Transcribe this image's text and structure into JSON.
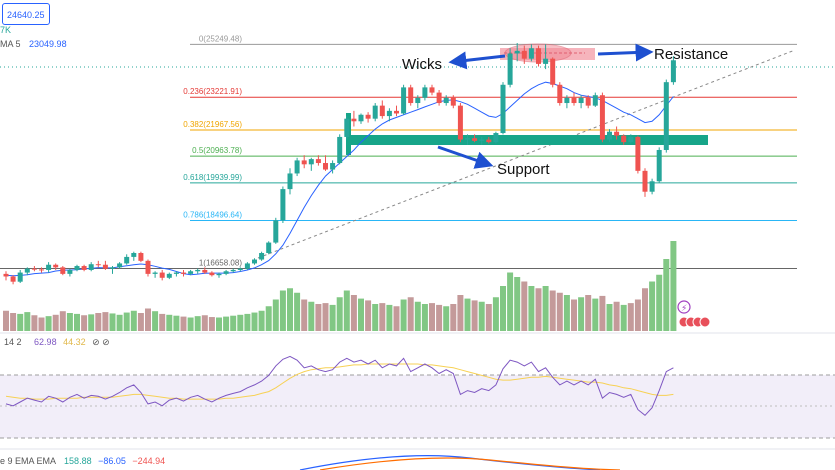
{
  "header": {
    "price_badge": "24640.25",
    "price_badge_color": "#2962ff",
    "k_fragment": "7K",
    "ma_label": "MA 5",
    "ma_value": "23049.98"
  },
  "fib_levels": [
    {
      "label": "0(25249.48)",
      "price": 25249.48,
      "color": "#999999"
    },
    {
      "label": "0.236(23221.91)",
      "price": 23221.91,
      "color": "#e53935"
    },
    {
      "label": "0.382(21967.56)",
      "price": 21967.56,
      "color": "#f0a500"
    },
    {
      "label": "0.5(20963.78)",
      "price": 20963.78,
      "color": "#4caf50"
    },
    {
      "label": "0.618(19939.99)",
      "price": 19939.99,
      "color": "#26a69a"
    },
    {
      "label": "0.786(18496.64)",
      "price": 18496.64,
      "color": "#29b6f6"
    },
    {
      "label": "1(16658.08)",
      "price": 16658.08,
      "color": "#666666"
    }
  ],
  "annotations": {
    "wicks": "Wicks",
    "resistance": "Resistance",
    "support": "Support"
  },
  "rsi_header": {
    "label": "14 2",
    "value1": "62.98",
    "value2": "44.32",
    "icons": "⊘ ⊘"
  },
  "macd_header": {
    "label": "e 9 EMA EMA",
    "v1": "158.88",
    "v2": "−86.05",
    "v3": "−244.94"
  },
  "colors": {
    "up": "#26a69a",
    "down": "#ef5350",
    "ma": "#2962ff",
    "rsi": "#7e57c2",
    "rsi_ma": "#f7d154",
    "support_zone": "#17a589",
    "vol_up": "#81c784",
    "vol_down": "#c49a9a"
  },
  "chart_data": {
    "type": "candlestick",
    "price_range": [
      16100,
      25800
    ],
    "candles": [
      [
        16450,
        16550,
        16200,
        16350
      ],
      [
        16350,
        16400,
        16050,
        16150
      ],
      [
        16150,
        16600,
        16100,
        16500
      ],
      [
        16500,
        16700,
        16400,
        16650
      ],
      [
        16650,
        16750,
        16550,
        16620
      ],
      [
        16620,
        16700,
        16500,
        16600
      ],
      [
        16600,
        16900,
        16500,
        16800
      ],
      [
        16800,
        16850,
        16600,
        16700
      ],
      [
        16700,
        16750,
        16400,
        16450
      ],
      [
        16450,
        16650,
        16350,
        16600
      ],
      [
        16600,
        16800,
        16550,
        16750
      ],
      [
        16750,
        16800,
        16550,
        16600
      ],
      [
        16600,
        16900,
        16550,
        16820
      ],
      [
        16820,
        16950,
        16700,
        16800
      ],
      [
        16800,
        16950,
        16600,
        16650
      ],
      [
        16650,
        16750,
        16450,
        16700
      ],
      [
        16700,
        16900,
        16650,
        16850
      ],
      [
        16850,
        17200,
        16800,
        17100
      ],
      [
        17100,
        17300,
        16950,
        17250
      ],
      [
        17250,
        17300,
        16900,
        16950
      ],
      [
        16950,
        17000,
        16350,
        16450
      ],
      [
        16450,
        16550,
        16300,
        16500
      ],
      [
        16500,
        16600,
        16200,
        16300
      ],
      [
        16300,
        16500,
        16250,
        16450
      ],
      [
        16450,
        16550,
        16350,
        16500
      ],
      [
        16500,
        16600,
        16350,
        16450
      ],
      [
        16450,
        16600,
        16400,
        16550
      ],
      [
        16550,
        16650,
        16450,
        16600
      ],
      [
        16600,
        16700,
        16450,
        16500
      ],
      [
        16500,
        16550,
        16350,
        16400
      ],
      [
        16400,
        16500,
        16300,
        16450
      ],
      [
        16450,
        16600,
        16400,
        16550
      ],
      [
        16550,
        16650,
        16500,
        16600
      ],
      [
        16600,
        16700,
        16550,
        16650
      ],
      [
        16650,
        16900,
        16600,
        16850
      ],
      [
        16850,
        17050,
        16800,
        17000
      ],
      [
        17000,
        17300,
        16950,
        17250
      ],
      [
        17250,
        17700,
        17200,
        17650
      ],
      [
        17650,
        18600,
        17600,
        18500
      ],
      [
        18500,
        19800,
        18400,
        19700
      ],
      [
        19700,
        20500,
        19500,
        20300
      ],
      [
        20300,
        20900,
        20200,
        20800
      ],
      [
        20800,
        21000,
        20500,
        20650
      ],
      [
        20650,
        20900,
        20400,
        20850
      ],
      [
        20850,
        21000,
        20600,
        20700
      ],
      [
        20700,
        21000,
        20400,
        20450
      ],
      [
        20450,
        20800,
        20300,
        20700
      ],
      [
        20700,
        21800,
        20650,
        21700
      ],
      [
        21700,
        22500,
        21600,
        22400
      ],
      [
        22400,
        22700,
        22100,
        22300
      ],
      [
        22300,
        22600,
        22200,
        22550
      ],
      [
        22550,
        22650,
        22250,
        22400
      ],
      [
        22400,
        23000,
        22300,
        22900
      ],
      [
        22900,
        23100,
        22400,
        22500
      ],
      [
        22500,
        22800,
        22300,
        22700
      ],
      [
        22700,
        22900,
        22500,
        22600
      ],
      [
        22600,
        23700,
        22550,
        23600
      ],
      [
        23600,
        23700,
        22900,
        23000
      ],
      [
        23000,
        23300,
        22800,
        23200
      ],
      [
        23200,
        23700,
        23100,
        23600
      ],
      [
        23600,
        23700,
        23300,
        23400
      ],
      [
        23400,
        23500,
        22900,
        23000
      ],
      [
        23000,
        23300,
        22900,
        23200
      ],
      [
        23200,
        23300,
        22800,
        22900
      ],
      [
        22900,
        23000,
        21500,
        21600
      ],
      [
        21600,
        21800,
        21400,
        21650
      ],
      [
        21650,
        21800,
        21500,
        21550
      ],
      [
        21550,
        21700,
        21400,
        21600
      ],
      [
        21600,
        21700,
        21450,
        21500
      ],
      [
        21500,
        21900,
        21450,
        21850
      ],
      [
        21850,
        23800,
        21800,
        23700
      ],
      [
        23700,
        25100,
        23600,
        24900
      ],
      [
        24900,
        25300,
        24600,
        25000
      ],
      [
        25000,
        25200,
        24500,
        24700
      ],
      [
        24700,
        25250,
        24600,
        25100
      ],
      [
        25100,
        25200,
        24400,
        24500
      ],
      [
        24500,
        25250,
        24300,
        24700
      ],
      [
        24700,
        24750,
        23600,
        23700
      ],
      [
        23700,
        23800,
        22900,
        23000
      ],
      [
        23000,
        23300,
        22800,
        23200
      ],
      [
        23200,
        23400,
        22900,
        23000
      ],
      [
        23000,
        23300,
        22800,
        23200
      ],
      [
        23200,
        23300,
        22800,
        22900
      ],
      [
        22900,
        23400,
        22850,
        23300
      ],
      [
        23300,
        23400,
        21500,
        21600
      ],
      [
        21600,
        22000,
        21500,
        21900
      ],
      [
        21900,
        22100,
        21600,
        21750
      ],
      [
        21750,
        21800,
        21400,
        21500
      ],
      [
        21500,
        21800,
        21450,
        21700
      ],
      [
        21700,
        21750,
        20300,
        20400
      ],
      [
        20400,
        20500,
        19400,
        19600
      ],
      [
        19600,
        20100,
        19500,
        20000
      ],
      [
        20000,
        21300,
        19950,
        21200
      ],
      [
        21200,
        23900,
        21100,
        23800
      ],
      [
        23800,
        24800,
        23700,
        24640
      ]
    ],
    "volume": [
      45,
      40,
      38,
      42,
      35,
      30,
      33,
      36,
      44,
      40,
      38,
      35,
      37,
      40,
      42,
      39,
      36,
      41,
      45,
      40,
      50,
      44,
      38,
      36,
      34,
      32,
      30,
      33,
      35,
      31,
      30,
      32,
      34,
      36,
      38,
      41,
      45,
      55,
      70,
      90,
      95,
      85,
      70,
      65,
      60,
      62,
      58,
      75,
      90,
      80,
      72,
      68,
      60,
      62,
      58,
      55,
      70,
      75,
      65,
      60,
      62,
      58,
      55,
      60,
      80,
      72,
      68,
      65,
      60,
      75,
      100,
      130,
      120,
      110,
      100,
      95,
      100,
      90,
      85,
      80,
      70,
      75,
      80,
      72,
      78,
      60,
      65,
      58,
      62,
      70,
      95,
      110,
      125,
      160,
      200
    ],
    "volume_up": [
      false,
      false,
      true,
      true,
      false,
      false,
      true,
      false,
      false,
      true,
      true,
      false,
      true,
      false,
      false,
      true,
      true,
      true,
      true,
      false,
      false,
      true,
      false,
      true,
      true,
      false,
      true,
      true,
      false,
      false,
      true,
      true,
      true,
      true,
      true,
      true,
      true,
      true,
      true,
      true,
      true,
      true,
      false,
      true,
      false,
      false,
      true,
      true,
      true,
      false,
      true,
      false,
      true,
      false,
      true,
      false,
      true,
      false,
      true,
      true,
      false,
      false,
      true,
      false,
      false,
      true,
      false,
      true,
      false,
      true,
      true,
      true,
      true,
      false,
      true,
      false,
      true,
      false,
      false,
      true,
      false,
      true,
      false,
      true,
      false,
      true,
      false,
      true,
      false,
      false,
      false,
      true,
      true,
      true,
      true
    ],
    "ma": [
      16400,
      16380,
      16390,
      16420,
      16460,
      16480,
      16500,
      16560,
      16590,
      16600,
      16610,
      16640,
      16660,
      16690,
      16680,
      16680,
      16720,
      16760,
      16800,
      16830,
      16800,
      16740,
      16670,
      16620,
      16540,
      16460,
      16420,
      16440,
      16470,
      16480,
      16480,
      16480,
      16500,
      16540,
      16600,
      16680,
      16800,
      16960,
      17220,
      17550,
      18000,
      18500,
      19000,
      19450,
      19850,
      20200,
      20450,
      20700,
      20950,
      21200,
      21500,
      21750,
      22000,
      22200,
      22350,
      22450,
      22550,
      22650,
      22750,
      22850,
      22950,
      23050,
      23100,
      23120,
      23050,
      22950,
      22800,
      22650,
      22500,
      22450,
      22600,
      22850,
      23100,
      23350,
      23550,
      23700,
      23800,
      23750,
      23650,
      23550,
      23400,
      23300,
      23250,
      23200,
      23100,
      22950,
      22800,
      22650,
      22550,
      22400,
      22250,
      22300,
      22550,
      22900,
      23250
    ],
    "rsi": [
      38,
      36,
      40,
      44,
      42,
      40,
      46,
      44,
      40,
      45,
      48,
      44,
      47,
      46,
      43,
      46,
      50,
      55,
      58,
      50,
      38,
      40,
      36,
      42,
      44,
      41,
      45,
      47,
      43,
      40,
      44,
      47,
      49,
      51,
      55,
      58,
      62,
      68,
      78,
      85,
      88,
      84,
      76,
      78,
      74,
      72,
      74,
      82,
      86,
      82,
      84,
      80,
      84,
      76,
      80,
      78,
      86,
      72,
      76,
      80,
      76,
      70,
      74,
      70,
      48,
      52,
      50,
      54,
      52,
      58,
      75,
      84,
      82,
      78,
      82,
      72,
      76,
      66,
      58,
      62,
      58,
      62,
      58,
      64,
      44,
      50,
      48,
      45,
      48,
      32,
      26,
      34,
      52,
      72,
      76
    ],
    "rsi_ma": [
      46,
      45,
      44,
      44,
      43,
      43,
      43,
      44,
      44,
      44,
      44,
      45,
      45,
      45,
      45,
      45,
      46,
      47,
      48,
      48,
      47,
      46,
      45,
      44,
      44,
      43,
      43,
      43,
      43,
      43,
      43,
      44,
      44,
      45,
      46,
      47,
      49,
      51,
      55,
      60,
      65,
      69,
      72,
      74,
      75,
      76,
      76,
      77,
      78,
      79,
      79,
      80,
      80,
      80,
      80,
      80,
      80,
      80,
      80,
      79,
      79,
      78,
      77,
      76,
      74,
      72,
      70,
      68,
      66,
      64,
      63,
      63,
      64,
      65,
      66,
      66,
      67,
      66,
      65,
      64,
      63,
      62,
      61,
      61,
      60,
      58,
      57,
      55,
      54,
      52,
      50,
      48,
      47,
      47,
      48
    ]
  }
}
